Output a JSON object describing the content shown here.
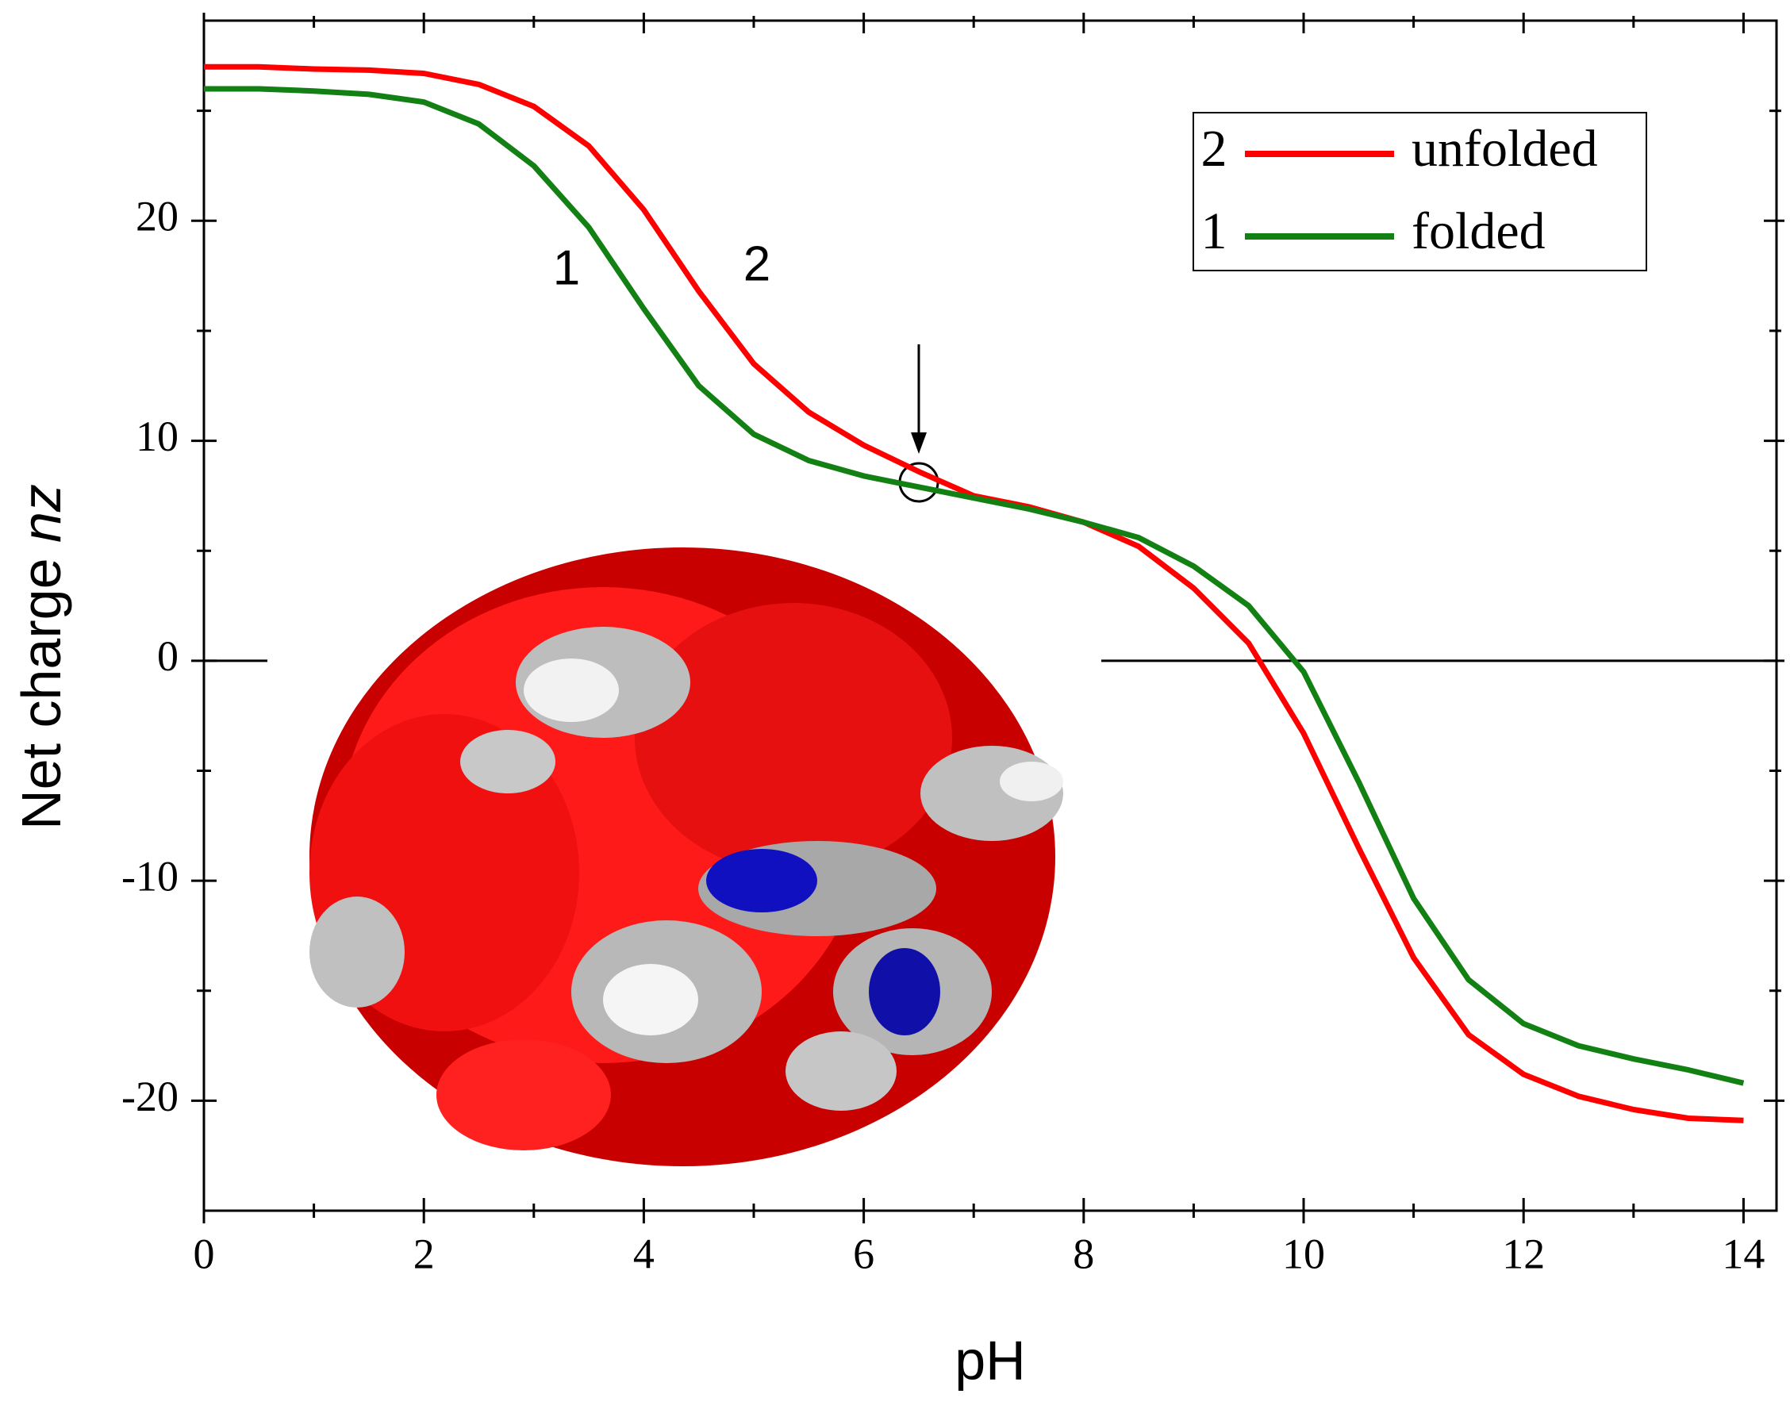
{
  "chart_data": {
    "type": "line",
    "xlabel": "pH",
    "ylabel": [
      "Net charge ",
      "nz"
    ],
    "annotations": [
      "1",
      "2"
    ],
    "x": [
      0,
      0.5,
      1,
      1.5,
      2,
      2.5,
      3,
      3.5,
      4,
      4.5,
      5,
      5.5,
      6,
      6.5,
      7,
      7.5,
      8,
      8.5,
      9,
      9.5,
      10,
      10.5,
      11,
      11.5,
      12,
      12.5,
      13,
      13.5,
      14
    ],
    "series": [
      {
        "name": "unfolded",
        "label": "2",
        "color": "#ff0000",
        "values": [
          27,
          27,
          26.9,
          26.85,
          26.7,
          26.2,
          25.2,
          23.4,
          20.5,
          16.8,
          13.5,
          11.3,
          9.8,
          8.6,
          7.5,
          7.0,
          6.3,
          5.2,
          3.3,
          0.8,
          -3.3,
          -8.5,
          -13.5,
          -17,
          -18.8,
          -19.8,
          -20.4,
          -20.8,
          -20.9
        ]
      },
      {
        "name": "folded",
        "label": "1",
        "color": "#138013",
        "values": [
          26,
          26,
          25.9,
          25.75,
          25.4,
          24.4,
          22.5,
          19.7,
          16,
          12.5,
          10.3,
          9.1,
          8.4,
          7.9,
          7.4,
          6.9,
          6.3,
          5.6,
          4.3,
          2.5,
          -0.5,
          -5.5,
          -10.8,
          -14.5,
          -16.5,
          -17.5,
          -18.1,
          -18.6,
          -19.2
        ]
      }
    ],
    "xlim": [
      0,
      14.3
    ],
    "xticks": [
      0,
      2,
      4,
      6,
      8,
      10,
      12,
      14
    ],
    "ylim": [
      -25,
      29.1
    ],
    "yticks": [
      -20,
      -10,
      0,
      10,
      20
    ],
    "legend": "upper right"
  }
}
